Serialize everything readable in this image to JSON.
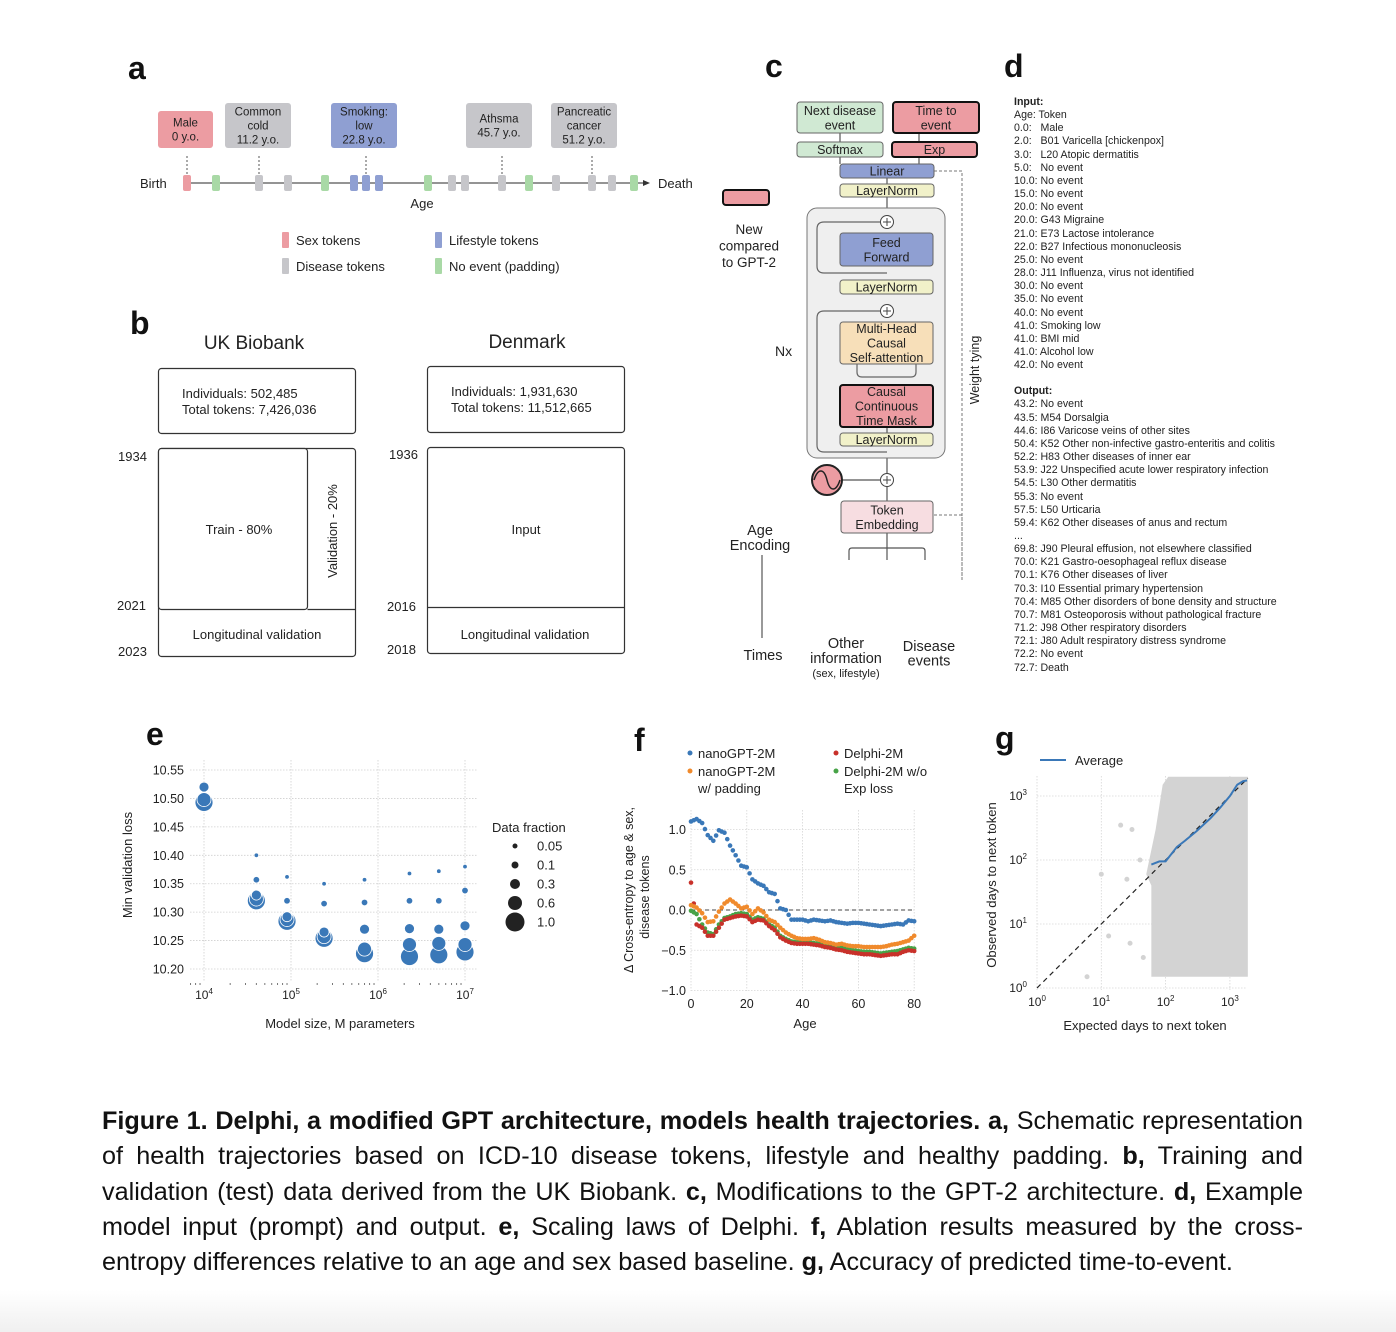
{
  "panel_labels": {
    "a": "a",
    "b": "b",
    "c": "c",
    "d": "d",
    "e": "e",
    "f": "f",
    "g": "g"
  },
  "panel_a": {
    "events": [
      {
        "lines": [
          "Male",
          "0 y.o."
        ],
        "type": "sex"
      },
      {
        "lines": [
          "Common",
          "cold",
          "11.2 y.o."
        ],
        "type": "disease"
      },
      {
        "lines": [
          "Smoking:",
          "low",
          "22.8 y.o."
        ],
        "type": "lifestyle"
      },
      {
        "lines": [
          "Athsma",
          "45.7 y.o."
        ],
        "type": "disease"
      },
      {
        "lines": [
          "Pancreatic",
          "cancer",
          "51.2 y.o."
        ],
        "type": "disease"
      }
    ],
    "token_sequence": [
      "sex",
      "padding",
      "disease",
      "disease",
      "padding",
      "lifestyle",
      "lifestyle",
      "lifestyle",
      "padding",
      "disease",
      "disease",
      "disease",
      "padding",
      "disease",
      "disease",
      "disease",
      "padding"
    ],
    "birth_label": "Birth",
    "death_label": "Death",
    "axis_label": "Age",
    "legend": [
      {
        "type": "sex",
        "label": "Sex tokens"
      },
      {
        "type": "lifestyle",
        "label": "Lifestyle tokens"
      },
      {
        "type": "disease",
        "label": "Disease tokens"
      },
      {
        "type": "padding",
        "label": "No event (padding)"
      }
    ],
    "colors": {
      "sex": "#ec9ca2",
      "disease": "#c6c6ca",
      "lifestyle": "#8f9fd2",
      "padding": "#a9d9a6"
    }
  },
  "panel_b": {
    "uk": {
      "title": "UK Biobank",
      "individuals": "Individuals: 502,485",
      "tokens": "Total tokens: 7,426,036",
      "train": "Train - 80%",
      "validation": "Validation - 20%",
      "longitudinal": "Longitudinal validation",
      "year_start": "1934",
      "year_mid": "2021",
      "year_end": "2023"
    },
    "dk": {
      "title": "Denmark",
      "individuals": "Individuals: 1,931,630",
      "tokens": "Total tokens: 11,512,665",
      "input": "Input",
      "longitudinal": "Longitudinal validation",
      "year_start": "1936",
      "year_mid": "2016",
      "year_end": "2018"
    }
  },
  "panel_c": {
    "next_disease": [
      "Next disease",
      "event"
    ],
    "time_to_event": [
      "Time to",
      "event"
    ],
    "softmax": "Softmax",
    "exp": "Exp",
    "linear": "Linear",
    "layernorm": "LayerNorm",
    "feed_forward": [
      "Feed",
      "Forward"
    ],
    "mha": [
      "Multi-Head",
      "Causal",
      "Self-attention"
    ],
    "time_mask": [
      "Causal",
      "Continuous",
      "Time Mask"
    ],
    "token_embedding": [
      "Token",
      "Embedding"
    ],
    "nx": "Nx",
    "weight_tying": "Weight tying",
    "legend_new": [
      "New",
      "compared",
      "to GPT-2"
    ],
    "age_encoding": [
      "Age",
      "Encoding"
    ],
    "times": "Times",
    "other_info": [
      "Other",
      "information"
    ],
    "other_info_sub": "(sex, lifestyle)",
    "disease_events": [
      "Disease",
      "events"
    ],
    "colors": {
      "green": "#d0e9d3",
      "pink": "#ec9ca2",
      "blue": "#8f9fd2",
      "yellow": "#f1f1c9",
      "orange": "#f7dfb9",
      "lightpink": "#f7dde1",
      "block": "#efefef"
    }
  },
  "panel_d": {
    "input_header": "Input:",
    "input_lines": [
      "Age: Token",
      "0.0:   Male",
      "2.0:   B01 Varicella [chickenpox]",
      "3.0:   L20 Atopic dermatitis",
      "5.0:   No event",
      "10.0: No event",
      "15.0: No event",
      "20.0: No event",
      "20.0: G43 Migraine",
      "21.0: E73 Lactose intolerance",
      "22.0: B27 Infectious mononucleosis",
      "25.0: No event",
      "28.0: J11 Influenza, virus not identified",
      "30.0: No event",
      "35.0: No event",
      "40.0: No event",
      "41.0: Smoking low",
      "41.0: BMI mid",
      "41.0: Alcohol low",
      "42.0: No event"
    ],
    "output_header": "Output:",
    "output_lines": [
      "43.2: No event",
      "43.5: M54 Dorsalgia",
      "44.6: I86 Varicose veins of other sites",
      "50.4: K52 Other non-infective gastro-enteritis and colitis",
      "52.2: H83 Other diseases of inner ear",
      "53.9: J22 Unspecified acute lower respiratory infection",
      "54.5: L30 Other dermatitis",
      "55.3: No event",
      "57.5: L50 Urticaria",
      "59.4: K62 Other diseases of anus and rectum",
      "...",
      "69.8: J90 Pleural effusion, not elsewhere classified",
      "70.0: K21 Gastro-oesophageal reflux disease",
      "70.1: K76 Other diseases of liver",
      "70.3: I10 Essential primary hypertension",
      "70.4: M85 Other disorders of bone density and structure",
      "70.7: M81 Osteoporosis without pathological fracture",
      "71.2: J98 Other respiratory disorders",
      "72.1: J80 Adult respiratory distress syndrome",
      "72.2: No event",
      "72.7: Death"
    ]
  },
  "chart_data": [
    {
      "id": "e",
      "type": "scatter",
      "xlabel": "Model size, M parameters",
      "ylabel": "Min validation loss",
      "xscale": "log",
      "xlim": [
        7000,
        14000000
      ],
      "ylim": [
        10.18,
        10.56
      ],
      "x_ticks": [
        {
          "base": "10",
          "exp": "4"
        },
        {
          "base": "10",
          "exp": "5"
        },
        {
          "base": "10",
          "exp": "6"
        },
        {
          "base": "10",
          "exp": "7"
        }
      ],
      "y_ticks": [
        "10.55",
        "10.50",
        "10.45",
        "10.40",
        "10.35",
        "10.30",
        "10.25",
        "10.20"
      ],
      "grid": true,
      "color": "#3a78b8",
      "legend_title": "Data fraction",
      "legend_position": "right",
      "fractions": [
        "0.05",
        "0.1",
        "0.3",
        "0.6",
        "1.0"
      ],
      "x": [
        10000,
        40000,
        90000,
        240000,
        700000,
        2300000,
        5000000,
        10000000
      ],
      "series": [
        {
          "name": "0.05",
          "values": [
            null,
            10.4,
            10.362,
            10.35,
            10.357,
            10.368,
            10.372,
            10.38
          ]
        },
        {
          "name": "0.1",
          "values": [
            null,
            10.357,
            10.32,
            10.315,
            10.317,
            10.32,
            10.32,
            10.338
          ]
        },
        {
          "name": "0.3",
          "values": [
            10.52,
            10.33,
            10.292,
            10.265,
            10.27,
            10.271,
            10.27,
            10.276
          ]
        },
        {
          "name": "0.6",
          "values": [
            10.498,
            10.323,
            10.287,
            10.257,
            10.235,
            10.243,
            10.245,
            10.243
          ]
        },
        {
          "name": "1.0",
          "values": [
            10.493,
            10.32,
            10.284,
            10.254,
            10.227,
            10.222,
            10.225,
            10.23
          ]
        }
      ]
    },
    {
      "id": "f",
      "type": "scatter",
      "xlabel": "Age",
      "ylabel": [
        "Δ Cross-entropy to age & sex,",
        "disease tokens"
      ],
      "xlim": [
        0,
        80
      ],
      "ylim": [
        -1.0,
        1.25
      ],
      "x_ticks": [
        "0",
        "20",
        "40",
        "60",
        "80"
      ],
      "y_ticks": [
        "1.0",
        "0.5",
        "0.0",
        "−0.5",
        "−1.0"
      ],
      "grid": true,
      "reference_line": 0,
      "legend_position": "top",
      "x": [
        0,
        2,
        4,
        6,
        8,
        10,
        12,
        14,
        16,
        18,
        20,
        22,
        24,
        26,
        28,
        30,
        32,
        34,
        36,
        38,
        40,
        42,
        44,
        46,
        48,
        50,
        52,
        54,
        56,
        58,
        60,
        62,
        64,
        66,
        68,
        70,
        72,
        74,
        76,
        78,
        80
      ],
      "series": [
        {
          "name": "nanoGPT-2M",
          "label_lines": [
            "nanoGPT-2M"
          ],
          "color": "#3a78b8",
          "values": [
            1.1,
            1.13,
            1.08,
            0.93,
            0.86,
            0.99,
            0.96,
            0.8,
            0.68,
            0.55,
            0.53,
            0.38,
            0.33,
            0.3,
            0.22,
            0.2,
            0.02,
            0.0,
            -0.12,
            -0.12,
            -0.12,
            -0.14,
            -0.12,
            -0.13,
            -0.14,
            -0.13,
            -0.15,
            -0.16,
            -0.17,
            -0.16,
            -0.16,
            -0.17,
            -0.18,
            -0.19,
            -0.2,
            -0.19,
            -0.18,
            -0.17,
            -0.18,
            -0.13,
            -0.14
          ]
        },
        {
          "name": "nanoGPT-2M w/ padding",
          "label_lines": [
            "nanoGPT-2M",
            "w/ padding"
          ],
          "color": "#f08a2c",
          "values": [
            0.06,
            0.03,
            -0.04,
            -0.15,
            -0.14,
            -0.02,
            0.08,
            0.13,
            0.08,
            0.02,
            0.04,
            -0.05,
            0.02,
            -0.03,
            -0.12,
            -0.15,
            -0.22,
            -0.28,
            -0.32,
            -0.35,
            -0.36,
            -0.36,
            -0.35,
            -0.37,
            -0.4,
            -0.41,
            -0.43,
            -0.42,
            -0.44,
            -0.45,
            -0.45,
            -0.46,
            -0.46,
            -0.46,
            -0.46,
            -0.45,
            -0.43,
            -0.42,
            -0.4,
            -0.38,
            -0.32
          ]
        },
        {
          "name": "Delphi-2M",
          "label_lines": [
            "Delphi-2M"
          ],
          "color": "#c8312a",
          "values": [
            0.34,
            -0.18,
            -0.22,
            -0.32,
            -0.32,
            -0.22,
            -0.12,
            -0.1,
            -0.08,
            -0.07,
            -0.08,
            -0.15,
            -0.12,
            -0.13,
            -0.2,
            -0.25,
            -0.34,
            -0.38,
            -0.41,
            -0.42,
            -0.42,
            -0.42,
            -0.43,
            -0.44,
            -0.46,
            -0.47,
            -0.49,
            -0.5,
            -0.52,
            -0.53,
            -0.54,
            -0.55,
            -0.55,
            -0.56,
            -0.57,
            -0.56,
            -0.55,
            -0.55,
            -0.52,
            -0.5,
            -0.51
          ]
        },
        {
          "name": "Delphi-2M w/o Exp loss",
          "label_lines": [
            "Delphi-2M w/o",
            "Exp loss"
          ],
          "color": "#47a347",
          "values": [
            -0.01,
            -0.05,
            -0.18,
            -0.28,
            -0.3,
            -0.18,
            -0.1,
            -0.08,
            -0.05,
            -0.04,
            -0.05,
            -0.12,
            -0.09,
            -0.11,
            -0.18,
            -0.22,
            -0.32,
            -0.36,
            -0.39,
            -0.4,
            -0.4,
            -0.4,
            -0.41,
            -0.42,
            -0.44,
            -0.45,
            -0.46,
            -0.47,
            -0.49,
            -0.5,
            -0.51,
            -0.52,
            -0.52,
            -0.53,
            -0.54,
            -0.53,
            -0.52,
            -0.51,
            -0.49,
            -0.47,
            -0.48
          ]
        }
      ]
    },
    {
      "id": "g",
      "type": "scatter",
      "xlabel": "Expected days to next token",
      "ylabel": "Observed days to next token",
      "xscale": "log",
      "yscale": "log",
      "xlim": [
        1,
        1900
      ],
      "ylim": [
        1,
        2000
      ],
      "x_ticks": [
        {
          "base": "10",
          "exp": "0"
        },
        {
          "base": "10",
          "exp": "1"
        },
        {
          "base": "10",
          "exp": "2"
        },
        {
          "base": "10",
          "exp": "3"
        }
      ],
      "y_ticks": [
        {
          "base": "10",
          "exp": "0"
        },
        {
          "base": "10",
          "exp": "1"
        },
        {
          "base": "10",
          "exp": "2"
        },
        {
          "base": "10",
          "exp": "3"
        }
      ],
      "grid": true,
      "legend_position": "top",
      "identity_line": true,
      "scatter_color": "#d3d3d3",
      "scatter_region": [
        [
          60,
          1.5
        ],
        [
          60,
          40
        ],
        [
          50,
          60
        ],
        [
          70,
          300
        ],
        [
          90,
          1500
        ],
        [
          110,
          2000
        ],
        [
          1900,
          2000
        ],
        [
          1900,
          1.5
        ]
      ],
      "scatter_outliers": [
        [
          6,
          1.5
        ],
        [
          10,
          60
        ],
        [
          13,
          6.5
        ],
        [
          20,
          350
        ],
        [
          25,
          50
        ],
        [
          28,
          5
        ],
        [
          30,
          300
        ],
        [
          40,
          100
        ],
        [
          45,
          3
        ]
      ],
      "series": [
        {
          "name": "Average",
          "color": "#3a78b8",
          "x": [
            60,
            80,
            100,
            150,
            200,
            300,
            500,
            700,
            1000,
            1300,
            1600,
            1850
          ],
          "y": [
            85,
            95,
            95,
            160,
            200,
            280,
            450,
            650,
            1000,
            1500,
            1700,
            1750
          ]
        }
      ]
    }
  ],
  "caption": [
    {
      "text": "Figure 1. Delphi, a modified GPT architecture, models health trajectories.",
      "bold": true
    },
    {
      "text": " ",
      "bold": false
    },
    {
      "text": "a,",
      "bold": true
    },
    {
      "text": " Schematic representation of health trajectories based on ICD-10 disease tokens, lifestyle and healthy padding. ",
      "bold": false
    },
    {
      "text": "b,",
      "bold": true
    },
    {
      "text": " Training and validation (test) data derived from the UK Biobank. ",
      "bold": false
    },
    {
      "text": "c,",
      "bold": true
    },
    {
      "text": " Modifications to the GPT-2 architecture. ",
      "bold": false
    },
    {
      "text": "d,",
      "bold": true
    },
    {
      "text": " Example model input (prompt) and output. ",
      "bold": false
    },
    {
      "text": "e,",
      "bold": true
    },
    {
      "text": " Scaling laws of Delphi. ",
      "bold": false
    },
    {
      "text": "f,",
      "bold": true
    },
    {
      "text": " Ablation results measured by the cross-entropy differences relative to an age and sex based baseline. ",
      "bold": false
    },
    {
      "text": "g,",
      "bold": true
    },
    {
      "text": " Accuracy of predicted time-to-event.",
      "bold": false
    }
  ]
}
